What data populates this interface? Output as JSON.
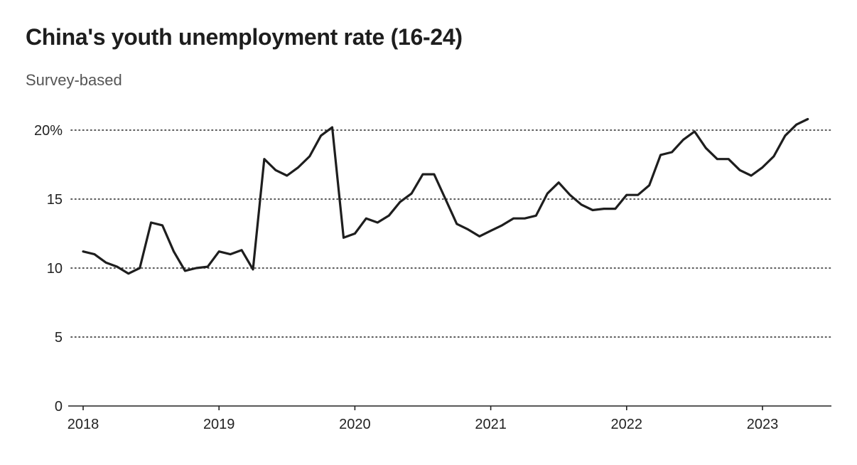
{
  "chart_data": {
    "type": "line",
    "title": "China's youth unemployment rate (16-24)",
    "subtitle": "Survey-based",
    "xlabel": "",
    "ylabel": "",
    "x_start": "2018-01",
    "x_interval": "month",
    "xlim": [
      "2018-01",
      "2023-07"
    ],
    "ylim": [
      0,
      20.8
    ],
    "y_ticks": [
      0,
      5,
      10,
      15,
      20
    ],
    "y_tick_labels": [
      "0",
      "5",
      "10",
      "15",
      "20%"
    ],
    "x_ticks": [
      "2018-01",
      "2019-01",
      "2020-01",
      "2021-01",
      "2022-01",
      "2023-01"
    ],
    "x_tick_labels": [
      "2018",
      "2019",
      "2020",
      "2021",
      "2022",
      "2023"
    ],
    "grid": "horizontal dotted",
    "line_color": "#1e1e1e",
    "grid_color": "#222222",
    "series": [
      {
        "values": [
          11.2,
          11.0,
          10.4,
          10.1,
          9.6,
          10.0,
          13.3,
          13.1,
          11.2,
          9.8,
          10.0,
          10.1,
          11.2,
          11.0,
          11.3,
          9.9,
          17.9,
          17.1,
          16.7,
          17.3,
          18.1,
          19.6,
          20.2,
          12.2,
          12.5,
          13.6,
          13.3,
          13.8,
          14.8,
          15.4,
          16.8,
          16.8,
          15.0,
          13.2,
          12.8,
          12.3,
          12.7,
          13.1,
          13.6,
          13.6,
          13.8,
          15.4,
          16.2,
          15.3,
          14.6,
          14.2,
          14.3,
          14.3,
          15.3,
          15.3,
          16.0,
          18.2,
          18.4,
          19.3,
          19.9,
          18.7,
          17.9,
          17.9,
          17.1,
          16.7,
          17.3,
          18.1,
          19.6,
          20.4,
          20.8
        ]
      }
    ]
  }
}
